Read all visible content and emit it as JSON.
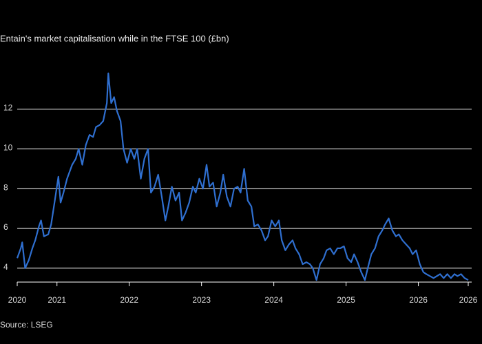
{
  "chart_data": {
    "type": "line",
    "title": "Entain's market capitalisation while in the FTSE 100 (£bn)",
    "source": "Source: LSEG",
    "x": [
      2020.45,
      2020.5,
      2020.52,
      2020.56,
      2020.61,
      2020.66,
      2020.7,
      2020.75,
      2020.78,
      2020.82,
      2020.88,
      2020.92,
      2020.97,
      2021.02,
      2021.05,
      2021.09,
      2021.14,
      2021.21,
      2021.26,
      2021.3,
      2021.35,
      2021.4,
      2021.45,
      2021.5,
      2021.54,
      2021.59,
      2021.64,
      2021.69,
      2021.71,
      2021.75,
      2021.79,
      2021.83,
      2021.88,
      2021.92,
      2021.97,
      2022.02,
      2022.07,
      2022.11,
      2022.16,
      2022.21,
      2022.26,
      2022.3,
      2022.35,
      2022.4,
      2022.45,
      2022.5,
      2022.54,
      2022.59,
      2022.64,
      2022.69,
      2022.73,
      2022.78,
      2022.83,
      2022.88,
      2022.92,
      2022.97,
      2023.02,
      2023.07,
      2023.11,
      2023.16,
      2023.21,
      2023.26,
      2023.3,
      2023.35,
      2023.4,
      2023.45,
      2023.5,
      2023.54,
      2023.59,
      2023.64,
      2023.69,
      2023.73,
      2023.78,
      2023.83,
      2023.88,
      2023.92,
      2023.97,
      2024.02,
      2024.07,
      2024.11,
      2024.16,
      2024.21,
      2024.26,
      2024.3,
      2024.35,
      2024.4,
      2024.45,
      2024.5,
      2024.54,
      2024.59,
      2024.64,
      2024.69,
      2024.73,
      2024.78,
      2024.83,
      2024.88,
      2024.92,
      2024.97,
      2025.02,
      2025.07,
      2025.11,
      2025.16,
      2025.21,
      2025.26,
      2025.3,
      2025.35,
      2025.4,
      2025.45,
      2025.5,
      2025.54,
      2025.59,
      2025.64,
      2025.69,
      2025.73,
      2025.78,
      2025.83,
      2025.88,
      2025.92,
      2025.97,
      2026.02,
      2026.07,
      2026.11,
      2026.16,
      2026.21,
      2026.3,
      2026.35,
      2026.4,
      2026.45,
      2026.5,
      2026.54,
      2026.59,
      2026.64,
      2026.69
    ],
    "series": [
      {
        "name": "Market capitalisation",
        "color": "#2f6fd0",
        "values": [
          4.5,
          5.0,
          5.3,
          4.0,
          4.4,
          5.0,
          5.4,
          6.1,
          6.4,
          5.6,
          5.7,
          6.2,
          7.4,
          8.6,
          7.3,
          7.8,
          8.5,
          9.2,
          9.5,
          10.0,
          9.2,
          10.2,
          10.7,
          10.6,
          11.1,
          11.2,
          11.4,
          12.3,
          13.8,
          12.3,
          12.6,
          11.9,
          11.4,
          10.0,
          9.3,
          10.0,
          9.5,
          10.0,
          8.5,
          9.5,
          10.0,
          7.8,
          8.1,
          8.7,
          7.6,
          6.4,
          7.1,
          8.1,
          7.4,
          7.8,
          6.4,
          6.8,
          7.3,
          8.1,
          7.8,
          8.5,
          8.0,
          9.2,
          8.1,
          8.3,
          7.1,
          7.8,
          8.7,
          7.6,
          7.1,
          8.0,
          8.1,
          7.8,
          9.0,
          7.4,
          7.1,
          6.1,
          6.2,
          5.9,
          5.4,
          5.6,
          6.4,
          6.1,
          6.4,
          5.4,
          4.9,
          5.2,
          5.4,
          5.0,
          4.7,
          4.2,
          4.3,
          4.2,
          4.0,
          3.4,
          4.2,
          4.5,
          4.9,
          5.0,
          4.7,
          5.0,
          5.0,
          5.1,
          4.5,
          4.3,
          4.7,
          4.3,
          3.8,
          3.4,
          4.0,
          4.7,
          5.0,
          5.6,
          5.9,
          6.2,
          6.5,
          5.9,
          5.6,
          5.7,
          5.4,
          5.2,
          5.0,
          4.7,
          4.9,
          4.2,
          3.8,
          3.7,
          3.6,
          3.5,
          3.7,
          3.5,
          3.7,
          3.5,
          3.7,
          3.6,
          3.7,
          3.5,
          3.4
        ]
      }
    ],
    "xlim": [
      2020.45,
      2026.69
    ],
    "xticks": [
      {
        "value": 2020.45,
        "label": "2020"
      },
      2021,
      2022,
      2023,
      2024,
      2025,
      2026,
      {
        "value": 2026.69,
        "label": "2026"
      }
    ],
    "ylim": [
      3.3,
      14.2
    ],
    "yticks": [
      4,
      6,
      8,
      10,
      12
    ],
    "grid": true
  }
}
